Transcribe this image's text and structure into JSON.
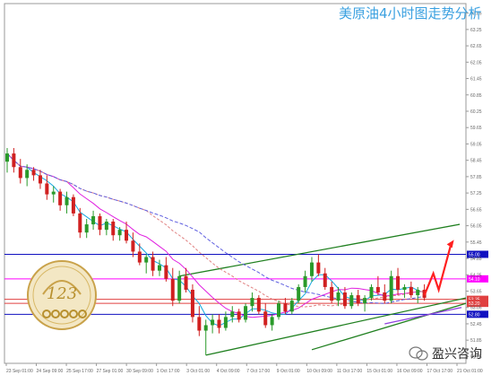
{
  "title": "美原油4小时图走势分析",
  "watermark": {
    "text": "盈兴咨询",
    "icon": "wechat-icon"
  },
  "logo": {
    "name": "gold-123-emblem-logo",
    "text": "123"
  },
  "colors": {
    "bull": "#2a9a2a",
    "bear": "#d02020",
    "ma_fast": "#16a8e0",
    "ma_mid": "#e020e0",
    "ma_slow": "#e08080",
    "ma_slow2": "#6060e0",
    "hline_blue": "#1010c0",
    "hline_magenta": "#ff00ff",
    "hline_red": "#e04040",
    "channel": "#208020",
    "support_violet": "#9040e0",
    "forecast": "#ff2020"
  },
  "chart_data": {
    "type": "candlestick",
    "title": "美原油4小时图走势分析",
    "ylim": [
      51.0,
      64.2
    ],
    "y_ticks": [
      "63.85",
      "63.25",
      "62.65",
      "62.05",
      "61.45",
      "60.85",
      "60.25",
      "59.65",
      "59.05",
      "58.45",
      "57.85",
      "57.25",
      "56.65",
      "56.05",
      "55.45",
      "54.85",
      "54.25",
      "53.65",
      "53.05",
      "52.45",
      "51.85",
      "51.25"
    ],
    "x_ticks": [
      "23 Sep 01:00",
      "24 Sep 09:00",
      "25 Sep 17:00",
      "27 Sep 01:00",
      "30 Sep 09:00",
      "1 Oct 17:00",
      "3 Oct 01:00",
      "4 Oct 09:00",
      "7 Oct 17:00",
      "9 Oct 01:00",
      "10 Oct 09:00",
      "11 Oct 17:00",
      "15 Oct 01:00",
      "16 Oct 09:00",
      "17 Oct 17:00",
      "21 Oct 01:00"
    ],
    "price_levels": [
      {
        "value": 55.0,
        "label": "55.00",
        "color": "#1010c0"
      },
      {
        "value": 54.1,
        "label": "54.10",
        "color": "#ff00ff"
      },
      {
        "value": 53.35,
        "label": "53.35",
        "color": "#e04040"
      },
      {
        "value": 53.2,
        "label": "53.20",
        "color": "#e04040"
      },
      {
        "value": 52.8,
        "label": "52.80",
        "color": "#1010c0"
      }
    ],
    "candles": [
      [
        58.4,
        58.9,
        58.0,
        58.7
      ],
      [
        58.7,
        58.9,
        58.0,
        58.2
      ],
      [
        58.2,
        58.5,
        57.6,
        57.8
      ],
      [
        57.8,
        58.3,
        57.5,
        58.1
      ],
      [
        58.1,
        58.2,
        57.7,
        57.9
      ],
      [
        57.9,
        58.1,
        57.4,
        57.6
      ],
      [
        57.6,
        57.9,
        57.0,
        57.2
      ],
      [
        57.2,
        57.5,
        56.9,
        57.3
      ],
      [
        57.3,
        57.4,
        56.6,
        56.8
      ],
      [
        56.8,
        57.3,
        56.5,
        57.1
      ],
      [
        57.1,
        57.2,
        56.4,
        56.5
      ],
      [
        56.5,
        56.7,
        55.6,
        55.8
      ],
      [
        55.8,
        56.3,
        55.6,
        56.1
      ],
      [
        56.1,
        56.6,
        55.9,
        56.4
      ],
      [
        56.4,
        56.5,
        55.7,
        55.9
      ],
      [
        55.9,
        56.3,
        55.7,
        56.2
      ],
      [
        56.2,
        56.3,
        55.5,
        55.7
      ],
      [
        55.7,
        56.0,
        55.5,
        55.9
      ],
      [
        55.9,
        56.2,
        55.4,
        55.5
      ],
      [
        55.5,
        55.8,
        54.9,
        55.1
      ],
      [
        55.1,
        55.4,
        54.6,
        54.7
      ],
      [
        54.7,
        55.0,
        54.3,
        54.9
      ],
      [
        54.9,
        55.1,
        54.2,
        54.4
      ],
      [
        54.4,
        54.8,
        54.2,
        54.6
      ],
      [
        54.6,
        54.9,
        54.0,
        54.1
      ],
      [
        54.1,
        54.5,
        53.1,
        53.3
      ],
      [
        53.3,
        54.4,
        53.2,
        54.2
      ],
      [
        54.2,
        54.5,
        53.6,
        53.7
      ],
      [
        53.7,
        53.9,
        52.5,
        52.7
      ],
      [
        52.7,
        53.1,
        52.0,
        52.2
      ],
      [
        52.2,
        52.6,
        51.3,
        52.4
      ],
      [
        52.4,
        52.8,
        52.1,
        52.6
      ],
      [
        52.6,
        52.8,
        52.1,
        52.3
      ],
      [
        52.3,
        52.9,
        52.2,
        52.7
      ],
      [
        52.7,
        53.1,
        52.5,
        52.9
      ],
      [
        52.9,
        53.0,
        52.5,
        52.6
      ],
      [
        52.6,
        53.2,
        52.5,
        53.1
      ],
      [
        53.1,
        53.6,
        52.9,
        53.4
      ],
      [
        53.4,
        53.5,
        52.8,
        52.9
      ],
      [
        52.9,
        53.2,
        52.3,
        52.4
      ],
      [
        52.4,
        52.8,
        52.2,
        52.7
      ],
      [
        52.7,
        53.3,
        52.6,
        53.2
      ],
      [
        53.2,
        53.4,
        52.8,
        52.9
      ],
      [
        52.9,
        53.4,
        52.8,
        53.3
      ],
      [
        53.3,
        53.9,
        53.2,
        53.8
      ],
      [
        53.8,
        54.4,
        53.6,
        54.2
      ],
      [
        54.2,
        54.9,
        54.0,
        54.7
      ],
      [
        54.7,
        55.0,
        54.2,
        54.3
      ],
      [
        54.3,
        54.5,
        53.7,
        53.8
      ],
      [
        53.8,
        54.0,
        53.2,
        53.3
      ],
      [
        53.3,
        53.8,
        53.1,
        53.6
      ],
      [
        53.6,
        53.8,
        53.0,
        53.1
      ],
      [
        53.1,
        53.6,
        53.0,
        53.5
      ],
      [
        53.5,
        53.7,
        53.1,
        53.2
      ],
      [
        53.2,
        53.5,
        52.9,
        53.4
      ],
      [
        53.4,
        53.9,
        53.3,
        53.8
      ],
      [
        53.8,
        54.2,
        53.5,
        53.6
      ],
      [
        53.6,
        53.9,
        53.2,
        53.3
      ],
      [
        53.3,
        54.4,
        53.2,
        54.2
      ],
      [
        54.2,
        54.5,
        53.5,
        53.7
      ],
      [
        53.7,
        53.9,
        53.4,
        53.8
      ],
      [
        53.8,
        54.0,
        53.4,
        53.5
      ],
      [
        53.5,
        53.8,
        53.2,
        53.7
      ],
      [
        53.7,
        53.9,
        53.3,
        53.4
      ]
    ]
  }
}
